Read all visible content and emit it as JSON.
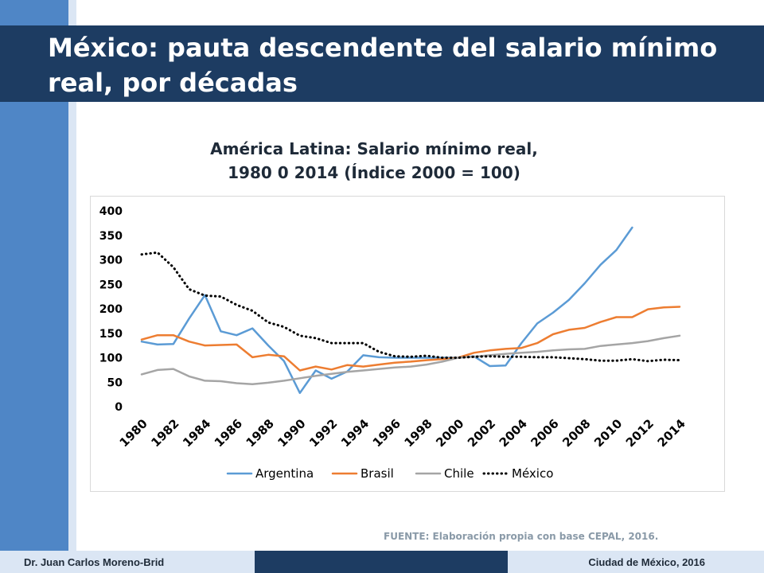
{
  "slide": {
    "title": "México: pauta descendente del salario mínimo real, por décadas",
    "source": "FUENTE: Elaboración propia con base CEPAL, 2016.",
    "footer_author": "Dr. Juan Carlos Moreno-Brid",
    "footer_place": "Ciudad de México, 2016"
  },
  "colors": {
    "title_bar": "#1d3c62",
    "accent": "#4f86c6"
  },
  "chart_data": {
    "type": "line",
    "title_line1": "América Latina: Salario mínimo real,",
    "title_line2": "1980 0 2014 (Índice 2000 = 100)",
    "xlabel": "",
    "ylabel": "",
    "ylim": [
      0,
      400
    ],
    "yticks": [
      0,
      50,
      100,
      150,
      200,
      250,
      300,
      350,
      400
    ],
    "xtick_labels": [
      "1980",
      "1982",
      "1984",
      "1986",
      "1988",
      "1990",
      "1992",
      "1994",
      "1996",
      "1998",
      "2000",
      "2002",
      "2004",
      "2006",
      "2008",
      "2010",
      "2012",
      "2014"
    ],
    "x": [
      1980,
      1981,
      1982,
      1983,
      1984,
      1985,
      1986,
      1987,
      1988,
      1989,
      1990,
      1991,
      1992,
      1993,
      1994,
      1995,
      1996,
      1997,
      1998,
      1999,
      2000,
      2001,
      2002,
      2003,
      2004,
      2005,
      2006,
      2007,
      2008,
      2009,
      2010,
      2011,
      2012,
      2013,
      2014
    ],
    "grid": false,
    "legend": "bottom",
    "series": [
      {
        "name": "Argentina",
        "color": "#5b9bd5",
        "dash": "solid",
        "values": [
          133,
          127,
          128,
          180,
          228,
          154,
          146,
          160,
          125,
          93,
          28,
          74,
          57,
          72,
          105,
          101,
          100,
          100,
          100,
          100,
          100,
          103,
          83,
          84,
          130,
          170,
          192,
          218,
          252,
          290,
          320,
          366,
          null,
          null,
          null
        ]
      },
      {
        "name": "Brasil",
        "color": "#ed7d31",
        "dash": "solid",
        "values": [
          137,
          146,
          146,
          133,
          125,
          126,
          127,
          101,
          106,
          103,
          74,
          82,
          76,
          85,
          82,
          86,
          90,
          92,
          95,
          97,
          100,
          110,
          115,
          118,
          120,
          130,
          148,
          157,
          161,
          173,
          183,
          183,
          199,
          203,
          204
        ]
      },
      {
        "name": "Chile",
        "color": "#a5a5a5",
        "dash": "solid",
        "values": [
          66,
          75,
          77,
          62,
          53,
          52,
          48,
          46,
          49,
          53,
          58,
          63,
          67,
          71,
          74,
          77,
          80,
          82,
          86,
          92,
          100,
          102,
          105,
          108,
          110,
          112,
          115,
          117,
          118,
          124,
          127,
          130,
          134,
          140,
          145
        ]
      },
      {
        "name": "México",
        "color": "#000000",
        "dash": "dotted",
        "values": [
          311,
          315,
          285,
          240,
          227,
          225,
          208,
          196,
          172,
          163,
          145,
          140,
          130,
          130,
          130,
          112,
          103,
          102,
          104,
          100,
          100,
          102,
          103,
          102,
          102,
          101,
          101,
          99,
          97,
          94,
          94,
          97,
          93,
          96,
          95
        ]
      }
    ]
  }
}
